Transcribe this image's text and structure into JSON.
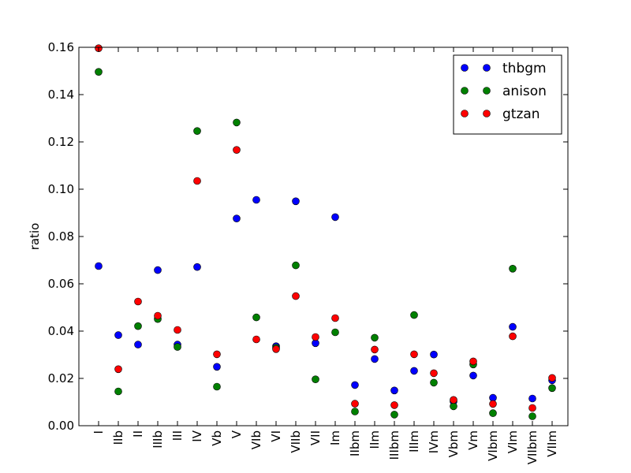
{
  "chart_data": {
    "type": "scatter",
    "title": "",
    "xlabel": "",
    "ylabel": "ratio",
    "ylim": [
      0,
      0.16
    ],
    "yticks": [
      "0.00",
      "0.02",
      "0.04",
      "0.06",
      "0.08",
      "0.10",
      "0.12",
      "0.14",
      "0.16"
    ],
    "categories": [
      "I",
      "IIb",
      "II",
      "IIIb",
      "III",
      "IV",
      "Vb",
      "V",
      "VIb",
      "VI",
      "VIIb",
      "VII",
      "Im",
      "IIbm",
      "IIm",
      "IIIbm",
      "IIIm",
      "IVm",
      "Vbm",
      "Vm",
      "VIbm",
      "VIm",
      "VIIbm",
      "VIIm"
    ],
    "grid": false,
    "legend_position": "top-right",
    "series": [
      {
        "name": "thbgm",
        "color": "#0000ff",
        "values": [
          0.0675,
          0.0383,
          0.0343,
          0.0658,
          0.0343,
          0.0671,
          0.0249,
          0.0876,
          0.0955,
          0.0336,
          0.0949,
          0.0349,
          0.0882,
          0.0172,
          0.0282,
          0.0149,
          0.0232,
          0.0301,
          0.0102,
          0.0212,
          0.0118,
          0.0418,
          0.0115,
          0.0192
        ]
      },
      {
        "name": "anison",
        "color": "#008000",
        "values": [
          0.1496,
          0.0145,
          0.0421,
          0.0451,
          0.0333,
          0.1246,
          0.0165,
          0.1282,
          0.0458,
          0.033,
          0.0678,
          0.0196,
          0.0395,
          0.006,
          0.0372,
          0.0047,
          0.0468,
          0.0182,
          0.0082,
          0.0259,
          0.0053,
          0.0664,
          0.004,
          0.0159
        ]
      },
      {
        "name": "gtzan",
        "color": "#ff0000",
        "values": [
          0.1596,
          0.0239,
          0.0525,
          0.0465,
          0.0405,
          0.1035,
          0.0302,
          0.1166,
          0.0365,
          0.0324,
          0.0548,
          0.0375,
          0.0455,
          0.0093,
          0.0322,
          0.0087,
          0.0302,
          0.0222,
          0.0109,
          0.0272,
          0.0092,
          0.0378,
          0.0075,
          0.0202
        ]
      }
    ]
  }
}
